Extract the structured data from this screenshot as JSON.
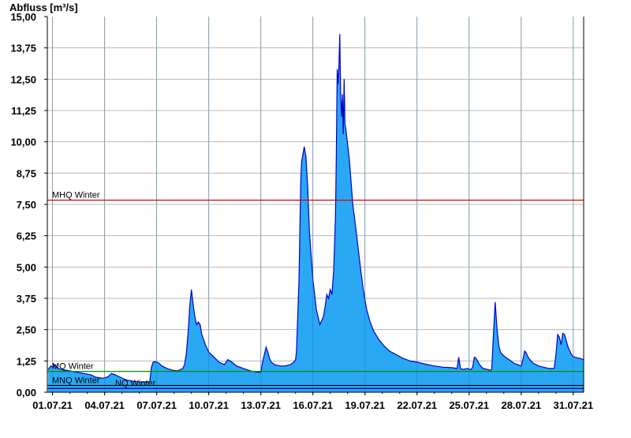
{
  "chart_data": {
    "type": "area",
    "ylabel": "Abfluss [m³/s]",
    "ylim": [
      0,
      15
    ],
    "y_ticks": [
      "15,00",
      "13,75",
      "12,50",
      "11,25",
      "10,00",
      "8,75",
      "7,50",
      "6,25",
      "5,00",
      "3,75",
      "2,50",
      "1,25",
      "0,00"
    ],
    "x_ticks": [
      "01.07.21",
      "04.07.21",
      "07.07.21",
      "10.07.21",
      "13.07.21",
      "16.07.21",
      "19.07.21",
      "22.07.21",
      "25.07.21",
      "28.07.21",
      "31.07.21"
    ],
    "xlim_day": [
      0.7,
      31.6
    ],
    "grid": true,
    "series": [
      {
        "x_day": [
          0.75,
          0.9,
          1.0,
          1.15,
          1.3,
          1.6,
          2.0,
          2.4,
          2.8,
          3.2,
          3.5,
          3.7,
          3.9,
          4.05,
          4.2,
          4.4,
          4.6,
          4.9,
          5.2,
          5.5,
          5.9,
          6.3,
          6.6,
          6.7,
          6.8,
          6.9,
          7.1,
          7.3,
          7.6,
          7.9,
          8.2,
          8.5,
          8.6,
          8.7,
          8.75,
          8.8,
          8.85,
          8.9,
          9.0,
          9.1,
          9.2,
          9.3,
          9.4,
          9.5,
          9.6,
          9.8,
          10.0,
          10.3,
          10.6,
          10.9,
          11.0,
          11.1,
          11.3,
          11.6,
          12.0,
          12.4,
          12.8,
          13.0,
          13.1,
          13.2,
          13.3,
          13.4,
          13.5,
          13.6,
          13.8,
          14.1,
          14.4,
          14.7,
          14.9,
          15.0,
          15.05,
          15.1,
          15.2,
          15.25,
          15.3,
          15.35,
          15.4,
          15.5,
          15.6,
          15.7,
          15.8,
          16.0,
          16.2,
          16.4,
          16.6,
          16.7,
          16.8,
          16.9,
          17.0,
          17.1,
          17.2,
          17.3,
          17.35,
          17.4,
          17.45,
          17.5,
          17.55,
          17.6,
          17.65,
          17.7,
          17.75,
          17.8,
          17.85,
          17.9,
          17.95,
          18.0,
          18.1,
          18.2,
          18.3,
          18.5,
          18.7,
          18.9,
          19.1,
          19.3,
          19.5,
          19.8,
          20.1,
          20.4,
          20.8,
          21.2,
          21.6,
          22.0,
          22.5,
          23.0,
          23.5,
          24.0,
          24.3,
          24.4,
          24.5,
          24.6,
          24.7,
          24.9,
          25.1,
          25.2,
          25.3,
          25.4,
          25.6,
          25.8,
          26.0,
          26.2,
          26.3,
          26.4,
          26.5,
          26.6,
          26.7,
          26.8,
          27.0,
          27.2,
          27.4,
          27.6,
          27.8,
          28.0,
          28.1,
          28.2,
          28.3,
          28.4,
          28.5,
          28.7,
          29.0,
          29.3,
          29.6,
          29.9,
          30.0,
          30.1,
          30.2,
          30.3,
          30.4,
          30.5,
          30.6,
          30.7,
          30.8,
          30.9,
          31.0,
          31.2,
          31.4,
          31.6
        ],
        "values": [
          0.9,
          1.05,
          1.0,
          1.1,
          0.95,
          0.9,
          0.85,
          0.8,
          0.75,
          0.7,
          0.6,
          0.58,
          0.56,
          0.58,
          0.62,
          0.75,
          0.7,
          0.6,
          0.5,
          0.45,
          0.42,
          0.4,
          0.42,
          1.0,
          1.2,
          1.22,
          1.18,
          1.05,
          0.95,
          0.88,
          0.85,
          0.95,
          1.1,
          1.5,
          1.9,
          2.3,
          2.8,
          3.4,
          4.1,
          3.5,
          3.0,
          2.7,
          2.8,
          2.7,
          2.3,
          1.9,
          1.6,
          1.4,
          1.2,
          1.1,
          1.2,
          1.3,
          1.22,
          1.05,
          0.95,
          0.85,
          0.8,
          0.8,
          1.2,
          1.5,
          1.8,
          1.6,
          1.35,
          1.2,
          1.1,
          1.05,
          1.05,
          1.1,
          1.2,
          1.3,
          1.6,
          2.5,
          4.5,
          6.5,
          8.4,
          9.2,
          9.4,
          9.8,
          9.4,
          8.2,
          6.4,
          4.5,
          3.3,
          2.7,
          3.0,
          3.4,
          3.9,
          3.75,
          4.1,
          3.9,
          4.9,
          7.0,
          9.5,
          12.9,
          12.3,
          13.0,
          14.3,
          11.8,
          11.0,
          11.9,
          10.3,
          12.5,
          10.7,
          10.5,
          10.2,
          9.9,
          9.3,
          8.4,
          7.5,
          6.4,
          5.2,
          4.1,
          3.3,
          2.8,
          2.45,
          2.1,
          1.85,
          1.65,
          1.5,
          1.35,
          1.25,
          1.2,
          1.12,
          1.05,
          1.0,
          0.98,
          0.95,
          1.4,
          0.95,
          0.92,
          0.92,
          0.95,
          0.9,
          1.0,
          1.4,
          1.35,
          1.1,
          0.95,
          0.92,
          0.88,
          0.9,
          2.3,
          3.6,
          2.6,
          1.9,
          1.6,
          1.45,
          1.35,
          1.25,
          1.15,
          1.1,
          1.05,
          1.3,
          1.65,
          1.55,
          1.4,
          1.3,
          1.15,
          1.05,
          1.0,
          0.95,
          0.95,
          1.5,
          2.3,
          2.2,
          1.9,
          2.35,
          2.3,
          2.05,
          1.8,
          1.65,
          1.5,
          1.42,
          1.38,
          1.35,
          1.3
        ]
      }
    ],
    "reference_lines": [
      {
        "label": "MHQ Winter",
        "value": 7.67,
        "color": "#e00000"
      },
      {
        "label": "MQ Winter",
        "value": 0.83,
        "color": "#009000"
      },
      {
        "label": "MNQ Winter",
        "value": 0.27,
        "color": "#000000"
      },
      {
        "label": "NQ Winter",
        "value": 0.15,
        "color": "#0000a0"
      }
    ],
    "colors": {
      "fill": "#2aa8f4",
      "stroke": "#0000cc",
      "grid": "#b8b8b8",
      "axis": "#000000"
    }
  }
}
